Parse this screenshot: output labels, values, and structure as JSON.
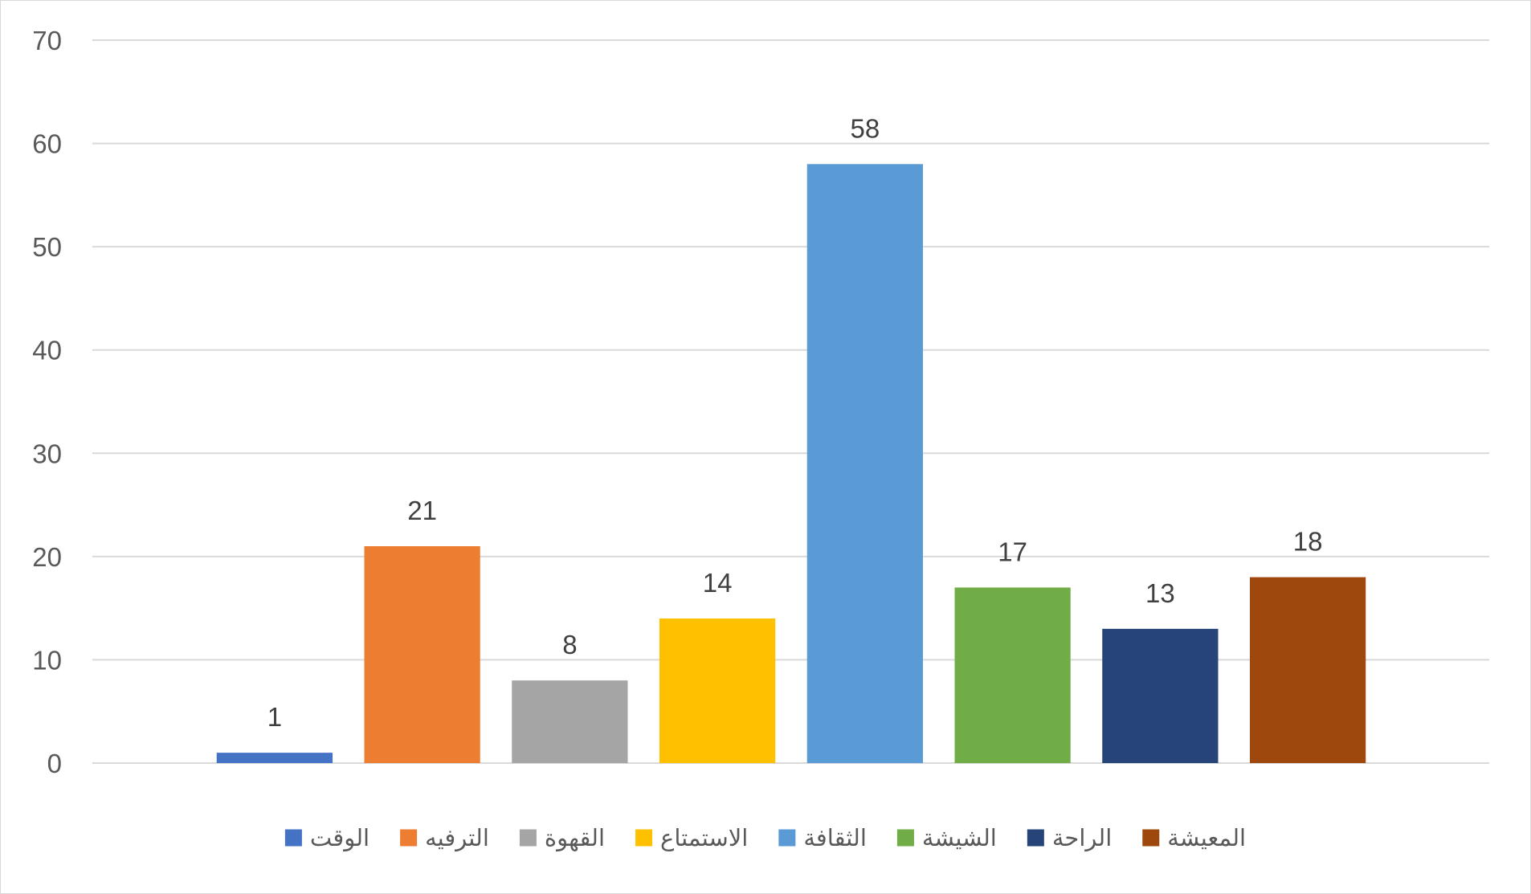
{
  "chart_data": {
    "type": "bar",
    "title": "",
    "xlabel": "",
    "ylabel": "",
    "ylim": [
      0,
      70
    ],
    "yticks": [
      0,
      10,
      20,
      30,
      40,
      50,
      60,
      70
    ],
    "grid": true,
    "legend_position": "bottom",
    "series": [
      {
        "name": "الوقت",
        "value": 1,
        "color": "#4472C4"
      },
      {
        "name": "الترفيه",
        "value": 21,
        "color": "#ED7D31"
      },
      {
        "name": "القهوة",
        "value": 8,
        "color": "#A5A5A5"
      },
      {
        "name": "الاستمتاع",
        "value": 14,
        "color": "#FFC000"
      },
      {
        "name": "الثقافة",
        "value": 58,
        "color": "#5B9BD5"
      },
      {
        "name": "الشيشة",
        "value": 17,
        "color": "#70AD47"
      },
      {
        "name": "الراحة",
        "value": 13,
        "color": "#264478"
      },
      {
        "name": "المعيشة",
        "value": 18,
        "color": "#9E480E"
      }
    ]
  }
}
